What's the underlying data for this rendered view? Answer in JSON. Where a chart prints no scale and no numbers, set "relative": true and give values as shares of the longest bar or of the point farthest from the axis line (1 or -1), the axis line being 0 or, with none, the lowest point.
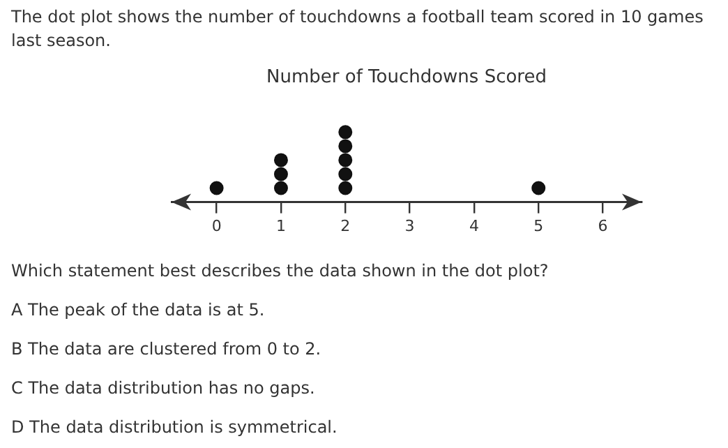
{
  "chart_data": {
    "type": "scatter",
    "title": "Number of Touchdowns Scored",
    "x": [
      0,
      1,
      1,
      1,
      2,
      2,
      2,
      2,
      2,
      5
    ],
    "values": [
      0.2,
      0.2,
      0.4,
      0.6,
      0.2,
      0.4,
      0.6,
      0.8,
      1,
      0.2
    ],
    "relative": true,
    "color": "#111111",
    "marker": "circle",
    "xlim": [
      -0.7,
      6.6
    ],
    "xticks": [
      0,
      1,
      2,
      3,
      4,
      5,
      6
    ],
    "tick_labels": "x",
    "annotations": [
      "The dot plot shows the number of touchdowns a football team scored in 10 games last season.",
      "Which statement best describes the data shown in the dot plot?",
      "A The peak of the data is at 5.",
      "B The data are clustered from 0 to 2.",
      "C The data distribution has no gaps.",
      "D The data distribution is symmetrical."
    ]
  }
}
